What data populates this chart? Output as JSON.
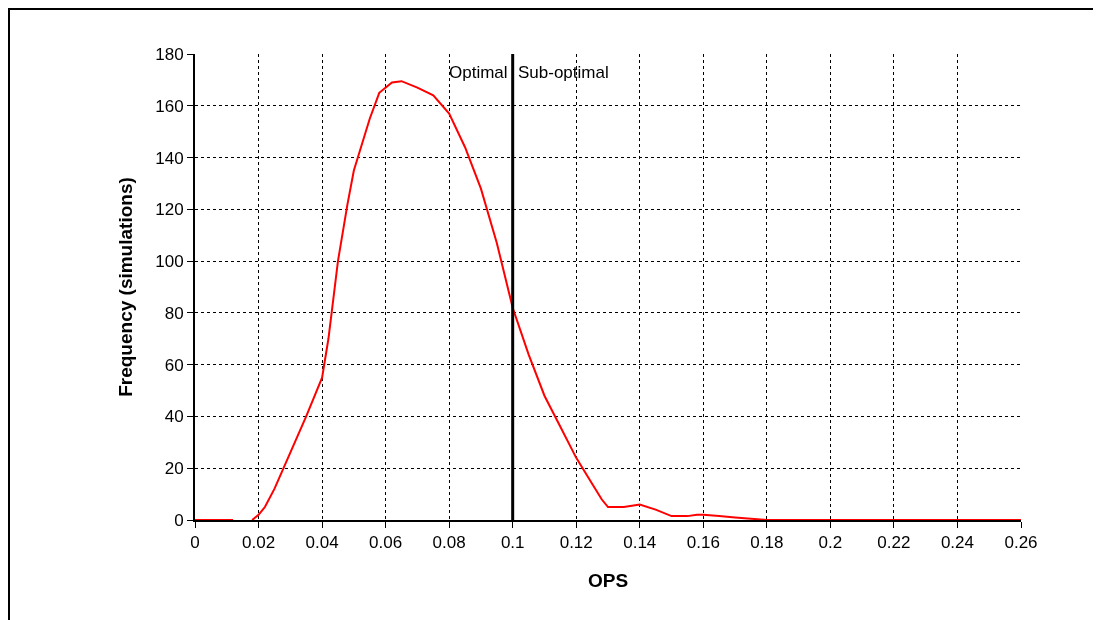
{
  "chart_data": {
    "type": "line",
    "xlabel": "OPS",
    "ylabel": "Frequency (simulations)",
    "x": [
      0,
      0.012,
      0.015,
      0.018,
      0.02,
      0.022,
      0.025,
      0.03,
      0.035,
      0.04,
      0.042,
      0.045,
      0.048,
      0.05,
      0.055,
      0.058,
      0.062,
      0.065,
      0.07,
      0.075,
      0.08,
      0.085,
      0.09,
      0.095,
      0.1,
      0.105,
      0.11,
      0.115,
      0.12,
      0.125,
      0.128,
      0.13,
      0.135,
      0.14,
      0.145,
      0.15,
      0.155,
      0.158,
      0.16,
      0.165,
      0.17,
      0.175,
      0.18,
      0.26
    ],
    "series": [
      {
        "color": "#ff0000",
        "values": [
          0,
          0,
          null,
          0,
          2,
          5,
          12,
          26,
          40,
          55,
          70,
          100,
          122,
          135,
          155,
          165,
          169,
          169.5,
          167,
          164,
          157,
          144,
          128,
          107,
          82,
          64,
          48,
          36,
          24,
          14,
          8,
          5,
          5,
          6,
          4,
          1.5,
          1.5,
          2,
          2,
          1.5,
          1,
          0.5,
          0,
          0
        ]
      }
    ],
    "xlim": [
      0,
      0.26
    ],
    "xticks": [
      0,
      0.02,
      0.04,
      0.06,
      0.08,
      0.1,
      0.12,
      0.14,
      0.16,
      0.18,
      0.2,
      0.22,
      0.24,
      0.26
    ],
    "ylim": [
      0,
      180
    ],
    "yticks": [
      0,
      20,
      40,
      60,
      80,
      100,
      120,
      140,
      160,
      180
    ],
    "grid": true,
    "marker": "none",
    "line_style": "solid",
    "ref_lines": [
      {
        "axis": "x",
        "value": 0.1,
        "color": "#000000"
      }
    ],
    "annotations": [
      {
        "text": "Optimal",
        "x": 0.1,
        "y": 173
      },
      {
        "text": "Sub-optimal",
        "x": 0.1,
        "y": 173
      }
    ]
  }
}
